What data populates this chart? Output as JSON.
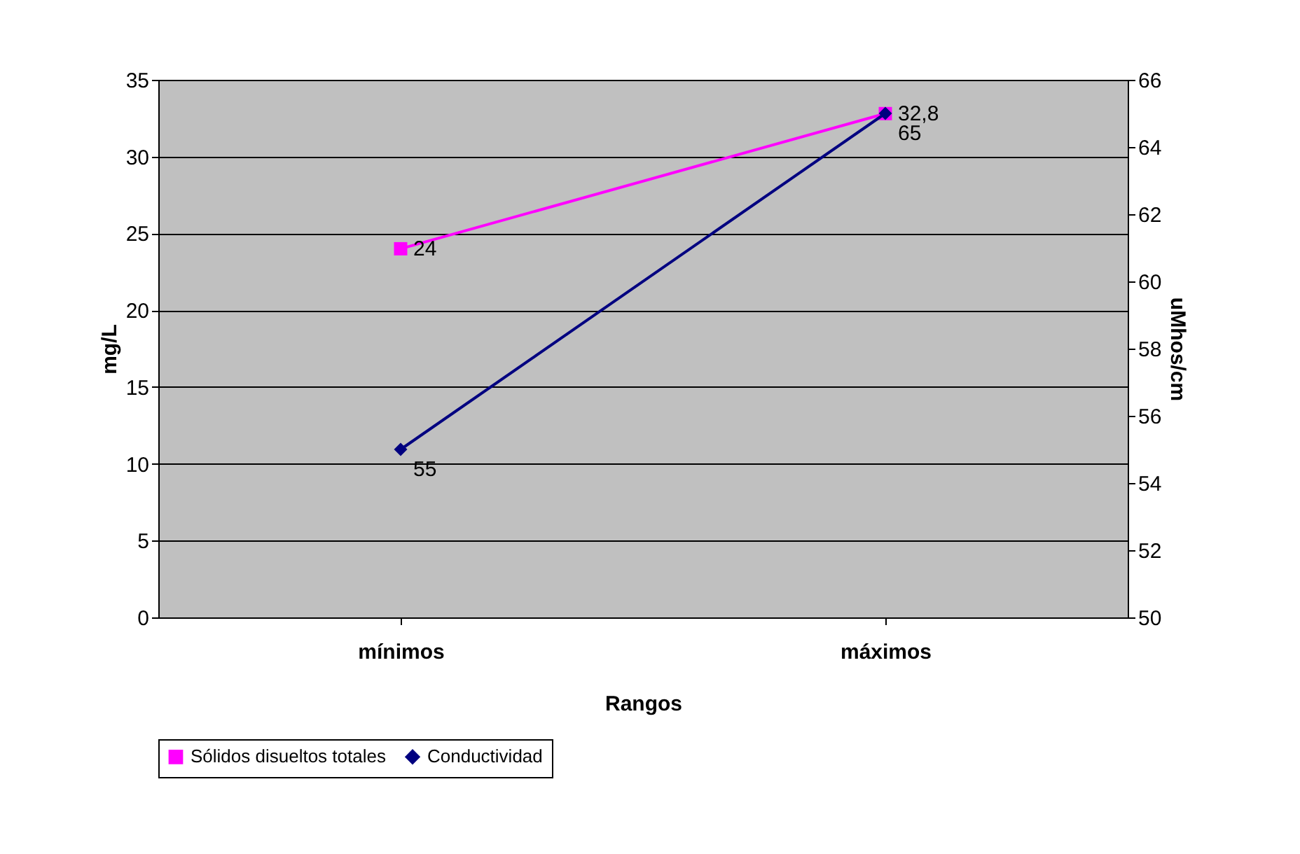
{
  "chart_data": {
    "type": "line",
    "xlabel": "Rangos",
    "ylabel": "mg/L",
    "y2label": "uMhos/cm",
    "categories": [
      "mínimos",
      "máximos"
    ],
    "series": [
      {
        "name": "Sólidos disueltos totales",
        "color": "#ff00ff",
        "values": [
          24,
          32.8
        ],
        "value_labels": [
          "24",
          "32,8"
        ],
        "marker": "square",
        "axis": "y"
      },
      {
        "name": "Conductividad",
        "color": "#000080",
        "values": [
          55,
          65
        ],
        "value_labels": [
          "55",
          "65"
        ],
        "marker": "diamond",
        "axis": "y2"
      }
    ],
    "ylim": [
      0,
      35
    ],
    "yticks": [
      0,
      5,
      10,
      15,
      20,
      25,
      30,
      35
    ],
    "y2lim": [
      50,
      66
    ],
    "y2ticks": [
      50,
      52,
      54,
      56,
      58,
      60,
      62,
      64,
      66
    ],
    "grid": "y",
    "legend": "bottom"
  }
}
